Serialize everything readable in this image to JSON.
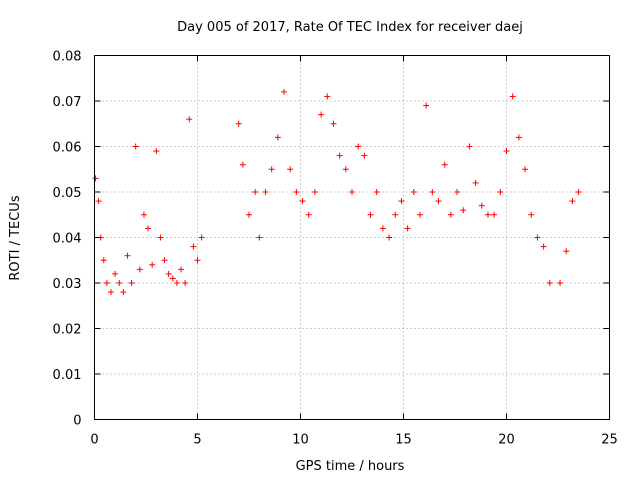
{
  "chart_data": {
    "type": "scatter",
    "title": "Day 005 of 2017, Rate Of TEC Index for receiver daej",
    "xlabel": "GPS time / hours",
    "ylabel": "ROTI / TECUs",
    "xlim": [
      0,
      25
    ],
    "ylim": [
      0,
      0.08
    ],
    "xticks": [
      0,
      5,
      10,
      15,
      20,
      25
    ],
    "xtick_labels": [
      "0",
      "5",
      "10",
      "15",
      "20",
      "25"
    ],
    "yticks": [
      0,
      0.01,
      0.02,
      0.03,
      0.04,
      0.05,
      0.06,
      0.07,
      0.08
    ],
    "ytick_labels": [
      "0",
      "0.01",
      "0.02",
      "0.03",
      "0.04",
      "0.05",
      "0.06",
      "0.07",
      "0.08"
    ],
    "grid": true,
    "marker": "+",
    "color": "#ff0000",
    "data_gap_hours": [
      5.4,
      6.8
    ],
    "series": [
      {
        "name": "ROTI",
        "x": [
          0.05,
          0.2,
          0.3,
          0.45,
          0.6,
          0.8,
          1.0,
          1.2,
          1.4,
          1.6,
          1.8,
          2.0,
          2.2,
          2.4,
          2.6,
          2.8,
          3.0,
          3.2,
          3.4,
          3.6,
          3.8,
          4.0,
          4.2,
          4.4,
          4.6,
          4.8,
          5.0,
          5.2,
          7.0,
          7.2,
          7.5,
          7.8,
          8.0,
          8.3,
          8.6,
          8.9,
          9.2,
          9.5,
          9.8,
          10.1,
          10.4,
          10.7,
          11.0,
          11.3,
          11.6,
          11.9,
          12.2,
          12.5,
          12.8,
          13.1,
          13.4,
          13.7,
          14.0,
          14.3,
          14.6,
          14.9,
          15.2,
          15.5,
          15.8,
          16.1,
          16.4,
          16.7,
          17.0,
          17.3,
          17.6,
          17.9,
          18.2,
          18.5,
          18.8,
          19.1,
          19.4,
          19.7,
          20.0,
          20.3,
          20.6,
          20.9,
          21.2,
          21.5,
          21.8,
          22.1,
          22.6,
          22.9,
          23.2,
          23.5
        ],
        "y": [
          0.053,
          0.048,
          0.04,
          0.035,
          0.03,
          0.028,
          0.032,
          0.03,
          0.028,
          0.036,
          0.03,
          0.06,
          0.033,
          0.045,
          0.042,
          0.034,
          0.059,
          0.04,
          0.035,
          0.032,
          0.031,
          0.03,
          0.033,
          0.03,
          0.066,
          0.038,
          0.035,
          0.04,
          0.065,
          0.056,
          0.045,
          0.05,
          0.04,
          0.05,
          0.055,
          0.062,
          0.072,
          0.055,
          0.05,
          0.048,
          0.045,
          0.05,
          0.067,
          0.071,
          0.065,
          0.058,
          0.055,
          0.05,
          0.06,
          0.058,
          0.045,
          0.05,
          0.042,
          0.04,
          0.045,
          0.048,
          0.042,
          0.05,
          0.045,
          0.069,
          0.05,
          0.048,
          0.056,
          0.045,
          0.05,
          0.046,
          0.06,
          0.052,
          0.047,
          0.045,
          0.045,
          0.05,
          0.059,
          0.071,
          0.062,
          0.055,
          0.045,
          0.04,
          0.038,
          0.03,
          0.03,
          0.037,
          0.048,
          0.05
        ]
      }
    ]
  }
}
